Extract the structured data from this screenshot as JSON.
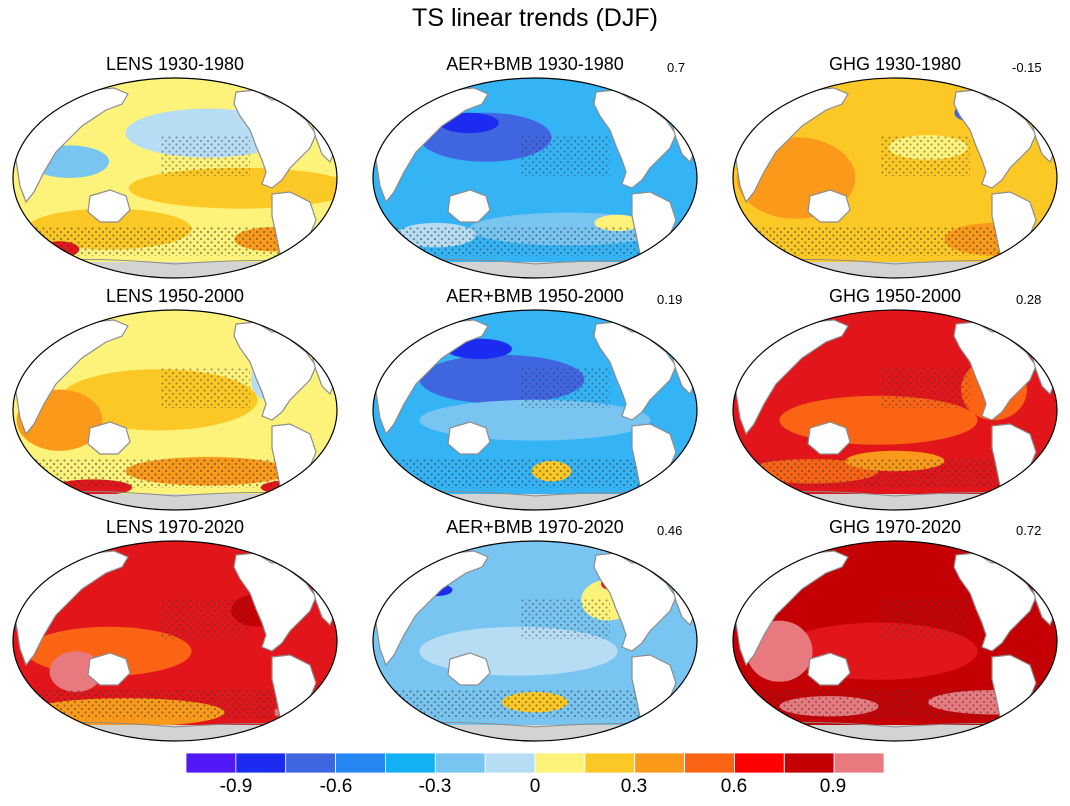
{
  "title": "TS linear trends (DJF)",
  "colors": {
    "land": "#ffffff",
    "antarctica": "#d3d3d3",
    "coast": "#8c8c8c",
    "stipple": "#3a3a3a"
  },
  "panels": [
    {
      "label": "LENS 1930-1980",
      "value": "",
      "ocean": "#fdf27a",
      "blobs": [
        [
          "#fcc825",
          0.7,
          0.55,
          0.34,
          0.1
        ],
        [
          "#fcc825",
          0.3,
          0.75,
          0.25,
          0.1
        ],
        [
          "#b7ddf5",
          0.6,
          0.28,
          0.25,
          0.12
        ],
        [
          "#78c5f2",
          0.18,
          0.42,
          0.12,
          0.08
        ],
        [
          "#fb9a1a",
          0.8,
          0.8,
          0.12,
          0.06
        ],
        [
          "#e2151b",
          0.15,
          0.85,
          0.06,
          0.04
        ]
      ]
    },
    {
      "label": "AER+BMB 1930-1980",
      "value": "0.7",
      "ocean": "#34b3f5",
      "blobs": [
        [
          "#3f65e1",
          0.35,
          0.3,
          0.2,
          0.12
        ],
        [
          "#1b2cf0",
          0.3,
          0.23,
          0.09,
          0.05
        ],
        [
          "#78c5f2",
          0.6,
          0.75,
          0.3,
          0.08
        ],
        [
          "#fdf27a",
          0.75,
          0.72,
          0.07,
          0.04
        ],
        [
          "#b7ddf5",
          0.2,
          0.78,
          0.12,
          0.06
        ]
      ]
    },
    {
      "label": "GHG 1930-1980",
      "value": "-0.15",
      "ocean": "#fcc825",
      "blobs": [
        [
          "#fb9a1a",
          0.2,
          0.5,
          0.18,
          0.2
        ],
        [
          "#fb9a1a",
          0.8,
          0.8,
          0.15,
          0.08
        ],
        [
          "#fdf27a",
          0.6,
          0.35,
          0.12,
          0.06
        ],
        [
          "#3f65e1",
          0.72,
          0.18,
          0.04,
          0.04
        ]
      ]
    },
    {
      "label": "LENS 1950-2000",
      "value": "",
      "ocean": "#fdf27a",
      "blobs": [
        [
          "#fcc825",
          0.45,
          0.45,
          0.3,
          0.15
        ],
        [
          "#fb9a1a",
          0.15,
          0.55,
          0.13,
          0.15
        ],
        [
          "#fb9a1a",
          0.6,
          0.8,
          0.25,
          0.07
        ],
        [
          "#e2151b",
          0.25,
          0.88,
          0.12,
          0.04
        ],
        [
          "#e2151b",
          0.88,
          0.88,
          0.12,
          0.04
        ],
        [
          "#b7ddf5",
          0.78,
          0.35,
          0.05,
          0.1
        ]
      ]
    },
    {
      "label": "AER+BMB 1950-2000",
      "value": "0.19",
      "ocean": "#34b3f5",
      "blobs": [
        [
          "#3f65e1",
          0.4,
          0.35,
          0.25,
          0.12
        ],
        [
          "#1b2cf0",
          0.33,
          0.2,
          0.1,
          0.05
        ],
        [
          "#78c5f2",
          0.5,
          0.55,
          0.35,
          0.1
        ],
        [
          "#fcc825",
          0.55,
          0.8,
          0.06,
          0.05
        ],
        [
          "#e2151b",
          0.74,
          0.2,
          0.04,
          0.04
        ]
      ]
    },
    {
      "label": "GHG 1950-2000",
      "value": "0.28",
      "ocean": "#e2151b",
      "blobs": [
        [
          "#fa6414",
          0.45,
          0.55,
          0.3,
          0.12
        ],
        [
          "#fa6414",
          0.25,
          0.8,
          0.2,
          0.06
        ],
        [
          "#fa6414",
          0.8,
          0.4,
          0.1,
          0.15
        ],
        [
          "#1b2cf0",
          0.74,
          0.2,
          0.04,
          0.04
        ],
        [
          "#fb9a1a",
          0.5,
          0.75,
          0.15,
          0.05
        ]
      ]
    },
    {
      "label": "LENS 1970-2020",
      "value": "",
      "ocean": "#e2151b",
      "blobs": [
        [
          "#fa6414",
          0.3,
          0.55,
          0.25,
          0.12
        ],
        [
          "#fb9a1a",
          0.35,
          0.85,
          0.3,
          0.07
        ],
        [
          "#e87a7f",
          0.2,
          0.65,
          0.08,
          0.1
        ],
        [
          "#e87a7f",
          0.9,
          0.85,
          0.1,
          0.05
        ],
        [
          "#1b2cf0",
          0.74,
          0.2,
          0.04,
          0.04
        ],
        [
          "#c40005",
          0.75,
          0.35,
          0.08,
          0.08
        ]
      ]
    },
    {
      "label": "AER+BMB 1970-2020",
      "value": "0.46",
      "ocean": "#78c5f2",
      "blobs": [
        [
          "#b7ddf5",
          0.45,
          0.55,
          0.3,
          0.12
        ],
        [
          "#fdf27a",
          0.72,
          0.3,
          0.08,
          0.1
        ],
        [
          "#fcc825",
          0.5,
          0.8,
          0.1,
          0.05
        ],
        [
          "#1b2cf0",
          0.2,
          0.25,
          0.05,
          0.03
        ],
        [
          "#e2151b",
          0.73,
          0.22,
          0.03,
          0.03
        ]
      ]
    },
    {
      "label": "GHG 1970-2020",
      "value": "0.72",
      "ocean": "#c40005",
      "blobs": [
        [
          "#e2151b",
          0.45,
          0.55,
          0.3,
          0.14
        ],
        [
          "#e87a7f",
          0.15,
          0.55,
          0.1,
          0.15
        ],
        [
          "#e87a7f",
          0.8,
          0.8,
          0.2,
          0.06
        ],
        [
          "#e87a7f",
          0.3,
          0.82,
          0.15,
          0.05
        ],
        [
          "#1b2cf0",
          0.74,
          0.2,
          0.04,
          0.04
        ]
      ]
    }
  ],
  "colorbar": {
    "colors": [
      "#5219f6",
      "#1b2cf0",
      "#3f65e1",
      "#2787f2",
      "#12b1f4",
      "#78c5f2",
      "#b7ddf5",
      "#fdf27a",
      "#fcc825",
      "#fb9a1a",
      "#fa6414",
      "#fd0000",
      "#c40005",
      "#e87a7f"
    ],
    "labels": [
      "-0.9",
      "-0.6",
      "-0.3",
      "0",
      "0.3",
      "0.6",
      "0.9"
    ]
  }
}
